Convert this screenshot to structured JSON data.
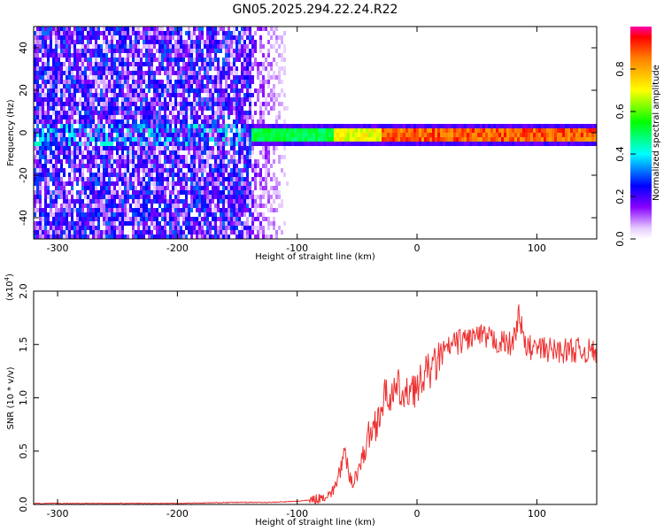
{
  "title": "GN05.2025.294.22.24.R22",
  "colors": {
    "series": "#ee3030",
    "axis": "#000000"
  },
  "chart_data": [
    {
      "type": "heatmap",
      "title": "GN05.2025.294.22.24.R22",
      "xlabel": "Height of straight line (km)",
      "ylabel": "Frequency (Hz)",
      "xlim": [
        -320,
        150
      ],
      "ylim": [
        -50,
        50
      ],
      "x_ticks": [
        -300,
        -200,
        -100,
        0,
        100
      ],
      "x_tick_labels": [
        "-300",
        "-200",
        "-100",
        "0",
        "100"
      ],
      "y_ticks": [
        -40,
        -20,
        0,
        20,
        40
      ],
      "y_tick_labels": [
        "-40",
        "-20",
        "0",
        "20",
        "40"
      ],
      "colorbar": {
        "label": "Normalized spectral amplitude",
        "range": [
          0.0,
          1.0
        ],
        "ticks": [
          0.0,
          0.2,
          0.4,
          0.6,
          0.8
        ],
        "tick_labels": [
          "0.0",
          "0.2",
          "0.4",
          "0.6",
          "0.8"
        ],
        "colormap": "rainbow"
      },
      "regions": [
        {
          "x_range": [
            -320,
            -140
          ],
          "description": "broadband noise",
          "amplitude": 0.15
        },
        {
          "x_range": [
            -140,
            -100
          ],
          "description": "fading noise",
          "amplitude": 0.08
        },
        {
          "x_range": [
            -140,
            150
          ],
          "line_frequency_hz": 0,
          "peak_amplitude": 0.95
        }
      ],
      "grid": false
    },
    {
      "type": "line",
      "xlabel": "Height of straight line (km)",
      "ylabel": "SNR (10 * v/v)",
      "y_scale_label": "(x10",
      "y_scale_exponent": "4",
      "xlim": [
        -320,
        150
      ],
      "ylim": [
        0.0,
        2.0
      ],
      "x_ticks": [
        -300,
        -200,
        -100,
        0,
        100
      ],
      "x_tick_labels": [
        "-300",
        "-200",
        "-100",
        "0",
        "100"
      ],
      "y_ticks": [
        0.0,
        0.5,
        1.0,
        1.5,
        2.0
      ],
      "y_tick_labels": [
        "0.0",
        "0.5",
        "1.0",
        "1.5",
        "2.0"
      ],
      "series": [
        {
          "color": "#ee3030",
          "x": [
            -320,
            -250,
            -200,
            -150,
            -120,
            -100,
            -90,
            -80,
            -70,
            -65,
            -60,
            -55,
            -50,
            -45,
            -40,
            -35,
            -30,
            -25,
            -20,
            -15,
            -10,
            -5,
            0,
            5,
            10,
            15,
            20,
            25,
            30,
            40,
            50,
            60,
            70,
            80,
            85,
            90,
            100,
            110,
            120,
            130,
            140,
            150
          ],
          "y": [
            0.01,
            0.01,
            0.01,
            0.02,
            0.02,
            0.03,
            0.04,
            0.06,
            0.12,
            0.3,
            0.45,
            0.2,
            0.3,
            0.45,
            0.65,
            0.75,
            0.9,
            1.05,
            1.0,
            1.1,
            0.95,
            1.15,
            1.05,
            1.2,
            1.25,
            1.3,
            1.4,
            1.45,
            1.5,
            1.55,
            1.58,
            1.55,
            1.52,
            1.5,
            1.8,
            1.48,
            1.46,
            1.45,
            1.44,
            1.45,
            1.44,
            1.43
          ]
        }
      ],
      "grid": false
    }
  ]
}
